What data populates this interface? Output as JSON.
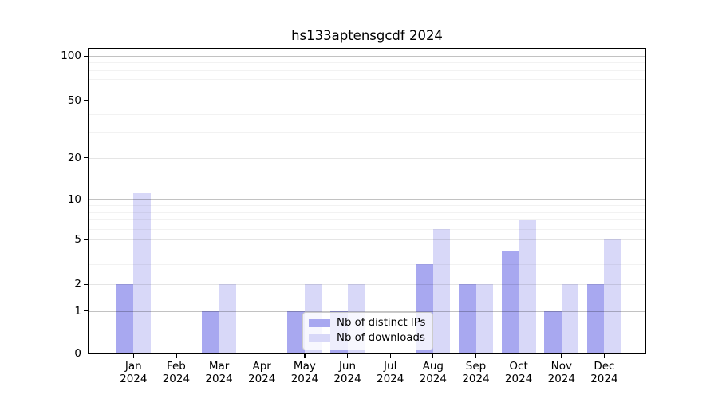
{
  "title": "hs133aptensgcdf 2024",
  "chart_data": {
    "type": "bar",
    "title": "hs133aptensgcdf 2024",
    "categories": [
      "Jan",
      "Feb",
      "Mar",
      "Apr",
      "May",
      "Jun",
      "Jul",
      "Aug",
      "Sep",
      "Oct",
      "Nov",
      "Dec"
    ],
    "category_year": "2024",
    "series": [
      {
        "name": "Nb of distinct IPs",
        "color": "#a8a8f0",
        "values": [
          2,
          0,
          1,
          0,
          1,
          1,
          0,
          3,
          2,
          4,
          1,
          2
        ]
      },
      {
        "name": "Nb of downloads",
        "color": "#d8d8f8",
        "values": [
          11,
          0,
          2,
          0,
          2,
          2,
          0,
          6,
          2,
          7,
          2,
          5
        ]
      }
    ],
    "xlabel": "",
    "ylabel": "",
    "y_axis": {
      "scale": "symlog",
      "tick_values": [
        0,
        1,
        2,
        5,
        10,
        20,
        50,
        100
      ],
      "tick_labels": [
        "0",
        "1",
        "2",
        "5",
        "10",
        "20",
        "50",
        "100"
      ],
      "minor_tick_values": [
        3,
        4,
        6,
        7,
        8,
        9,
        30,
        40,
        60,
        70,
        80,
        90
      ],
      "ylim": [
        0,
        113
      ]
    },
    "legend": {
      "position": "lower center",
      "entries": [
        "Nb of distinct IPs",
        "Nb of downloads"
      ]
    },
    "grid": true
  }
}
